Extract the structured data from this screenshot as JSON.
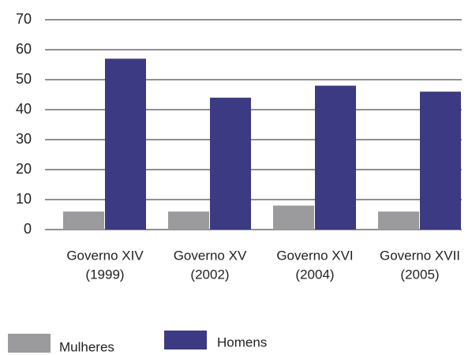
{
  "chart_data": {
    "type": "bar",
    "categories": [
      [
        "Governo XIV",
        "(1999)"
      ],
      [
        "Governo XV",
        "(2002)"
      ],
      [
        "Governo XVI",
        "(2004)"
      ],
      [
        "Governo XVII",
        "(2005)"
      ]
    ],
    "series": [
      {
        "name": "Mulheres",
        "color": "#9b9b9d",
        "values": [
          6,
          6,
          8,
          6
        ]
      },
      {
        "name": "Homens",
        "color": "#3b3a82",
        "values": [
          57,
          44,
          48,
          46
        ]
      }
    ],
    "ylim": [
      0,
      70
    ],
    "yticks": [
      0,
      10,
      20,
      30,
      40,
      50,
      60,
      70
    ],
    "grid": true
  }
}
